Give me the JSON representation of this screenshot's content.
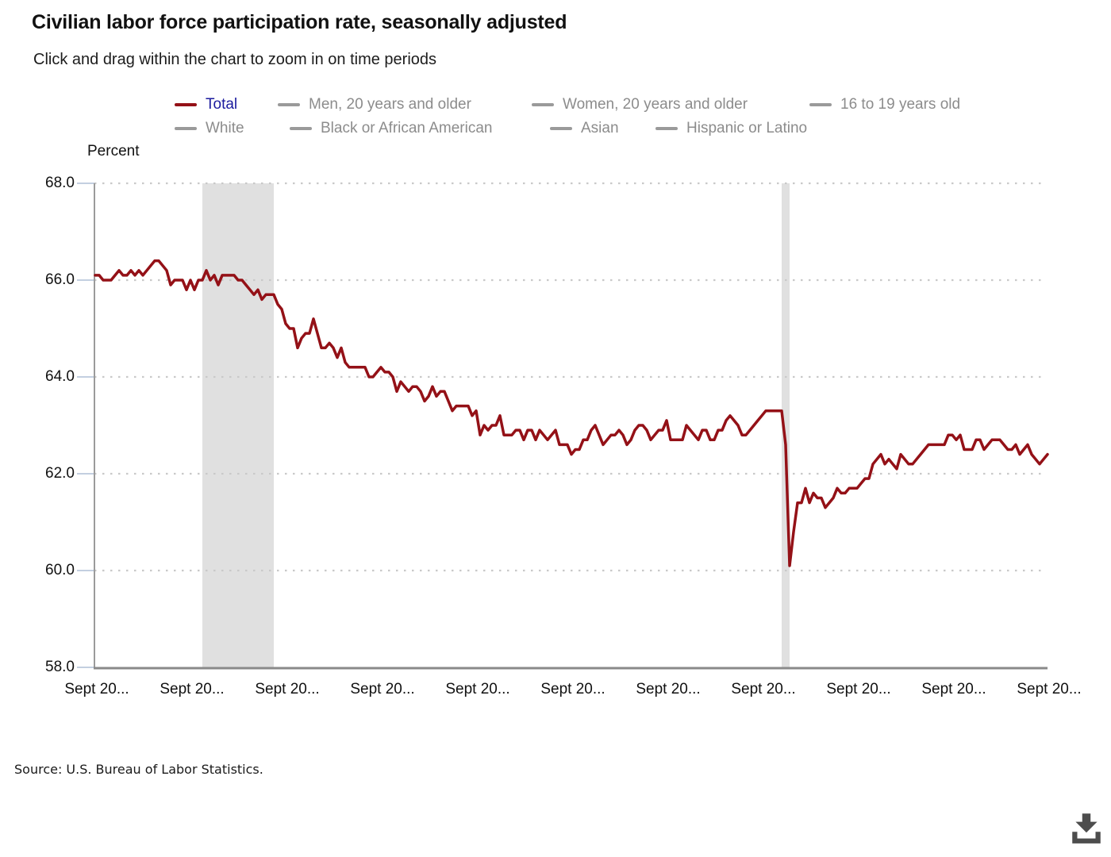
{
  "header": {
    "title": "Civilian labor force participation rate, seasonally adjusted",
    "subtitle": "Click and drag within the chart to zoom in on time periods"
  },
  "legend": {
    "items": [
      {
        "label": "Total",
        "swatch": "#941117",
        "text": "#1b1b9e",
        "selected": true
      },
      {
        "label": "Men, 20 years and older",
        "swatch": "#9a9a9a",
        "text": "#8c8c8c",
        "selected": false
      },
      {
        "label": "Women, 20 years and older",
        "swatch": "#9a9a9a",
        "text": "#8c8c8c",
        "selected": false
      },
      {
        "label": "16 to 19 years old",
        "swatch": "#9a9a9a",
        "text": "#8c8c8c",
        "selected": false
      },
      {
        "label": "White",
        "swatch": "#9a9a9a",
        "text": "#8c8c8c",
        "selected": false
      },
      {
        "label": "Black or African American",
        "swatch": "#9a9a9a",
        "text": "#8c8c8c",
        "selected": false
      },
      {
        "label": "Asian",
        "swatch": "#9a9a9a",
        "text": "#8c8c8c",
        "selected": false
      },
      {
        "label": "Hispanic or Latino",
        "swatch": "#9a9a9a",
        "text": "#8c8c8c",
        "selected": false
      }
    ]
  },
  "y_axis": {
    "label": "Percent",
    "ticks": [
      "68.0",
      "66.0",
      "64.0",
      "62.0",
      "60.0",
      "58.0"
    ]
  },
  "x_axis": {
    "ticks": [
      "Sept 20...",
      "Sept 20...",
      "Sept 20...",
      "Sept 20...",
      "Sept 20...",
      "Sept 20...",
      "Sept 20...",
      "Sept 20...",
      "Sept 20...",
      "Sept 20...",
      "Sept 20..."
    ]
  },
  "source_note": "Source: U.S. Bureau of Labor Statistics.",
  "colors": {
    "line_red": "#941117",
    "legend_navy": "#1b1b9e",
    "legend_gray": "#8c8c8c",
    "swatch_gray": "#9a9a9a",
    "gridline": "#c9c9c9",
    "recession_band": "#e0e0e0",
    "y_axis_line": "#9b9b9b",
    "x_axis_line": "#8a8a8a",
    "axis_tick": "#c3cfe0",
    "download_icon": "#4d4d4d"
  },
  "chart_data": {
    "type": "line",
    "title": "Civilian labor force participation rate, seasonally adjusted",
    "ylabel": "Percent",
    "ylim": [
      58.0,
      68.0
    ],
    "y_ticks": [
      58.0,
      60.0,
      62.0,
      64.0,
      66.0,
      68.0
    ],
    "grid": "dotted horizontal",
    "legend_position": "top",
    "frequency": "monthly",
    "n_points": 241,
    "x_tick_labels": [
      "Sept 20...",
      "Sept 20...",
      "Sept 20...",
      "Sept 20...",
      "Sept 20...",
      "Sept 20...",
      "Sept 20...",
      "Sept 20...",
      "Sept 20...",
      "Sept 20...",
      "Sept 20..."
    ],
    "shaded_bands": [
      {
        "from_index": 27,
        "to_index": 45
      },
      {
        "from_index": 173,
        "to_index": 175
      }
    ],
    "series": [
      {
        "name": "Total",
        "color": "#941117",
        "visible": true,
        "values": [
          66.1,
          66.1,
          66.0,
          66.0,
          66.0,
          66.1,
          66.2,
          66.1,
          66.1,
          66.2,
          66.1,
          66.2,
          66.1,
          66.2,
          66.3,
          66.4,
          66.4,
          66.3,
          66.2,
          65.9,
          66.0,
          66.0,
          66.0,
          65.8,
          66.0,
          65.8,
          66.0,
          66.0,
          66.2,
          66.0,
          66.1,
          65.9,
          66.1,
          66.1,
          66.1,
          66.1,
          66.0,
          66.0,
          65.9,
          65.8,
          65.7,
          65.8,
          65.6,
          65.7,
          65.7,
          65.7,
          65.5,
          65.4,
          65.1,
          65.0,
          65.0,
          64.6,
          64.8,
          64.9,
          64.9,
          65.2,
          64.9,
          64.6,
          64.6,
          64.7,
          64.6,
          64.4,
          64.6,
          64.3,
          64.2,
          64.2,
          64.2,
          64.2,
          64.2,
          64.0,
          64.0,
          64.1,
          64.2,
          64.1,
          64.1,
          64.0,
          63.7,
          63.9,
          63.8,
          63.7,
          63.8,
          63.8,
          63.7,
          63.5,
          63.6,
          63.8,
          63.6,
          63.7,
          63.7,
          63.5,
          63.3,
          63.4,
          63.4,
          63.4,
          63.4,
          63.2,
          63.3,
          62.8,
          63.0,
          62.9,
          63.0,
          63.0,
          63.2,
          62.8,
          62.8,
          62.8,
          62.9,
          62.9,
          62.7,
          62.9,
          62.9,
          62.7,
          62.9,
          62.8,
          62.7,
          62.8,
          62.9,
          62.6,
          62.6,
          62.6,
          62.4,
          62.5,
          62.5,
          62.7,
          62.7,
          62.9,
          63.0,
          62.8,
          62.6,
          62.7,
          62.8,
          62.8,
          62.9,
          62.8,
          62.6,
          62.7,
          62.9,
          63.0,
          63.0,
          62.9,
          62.7,
          62.8,
          62.9,
          62.9,
          63.1,
          62.7,
          62.7,
          62.7,
          62.7,
          63.0,
          62.9,
          62.8,
          62.7,
          62.9,
          62.9,
          62.7,
          62.7,
          62.9,
          62.9,
          63.1,
          63.2,
          63.1,
          63.0,
          62.8,
          62.8,
          62.9,
          63.0,
          63.1,
          63.2,
          63.3,
          63.3,
          63.3,
          63.3,
          63.3,
          62.6,
          60.1,
          60.8,
          61.4,
          61.4,
          61.7,
          61.4,
          61.6,
          61.5,
          61.5,
          61.3,
          61.4,
          61.5,
          61.7,
          61.6,
          61.6,
          61.7,
          61.7,
          61.7,
          61.8,
          61.9,
          61.9,
          62.2,
          62.3,
          62.4,
          62.2,
          62.3,
          62.2,
          62.1,
          62.4,
          62.3,
          62.2,
          62.2,
          62.3,
          62.4,
          62.5,
          62.6,
          62.6,
          62.6,
          62.6,
          62.6,
          62.8,
          62.8,
          62.7,
          62.8,
          62.5,
          62.5,
          62.5,
          62.7,
          62.7,
          62.5,
          62.6,
          62.7,
          62.7,
          62.7,
          62.6,
          62.5,
          62.5,
          62.6,
          62.4,
          62.5,
          62.6,
          62.4,
          62.3,
          62.2,
          62.3,
          62.4
        ]
      },
      {
        "name": "Men, 20 years and older",
        "visible": false
      },
      {
        "name": "Women, 20 years and older",
        "visible": false
      },
      {
        "name": "16 to 19 years old",
        "visible": false
      },
      {
        "name": "White",
        "visible": false
      },
      {
        "name": "Black or African American",
        "visible": false
      },
      {
        "name": "Asian",
        "visible": false
      },
      {
        "name": "Hispanic or Latino",
        "visible": false
      }
    ]
  }
}
